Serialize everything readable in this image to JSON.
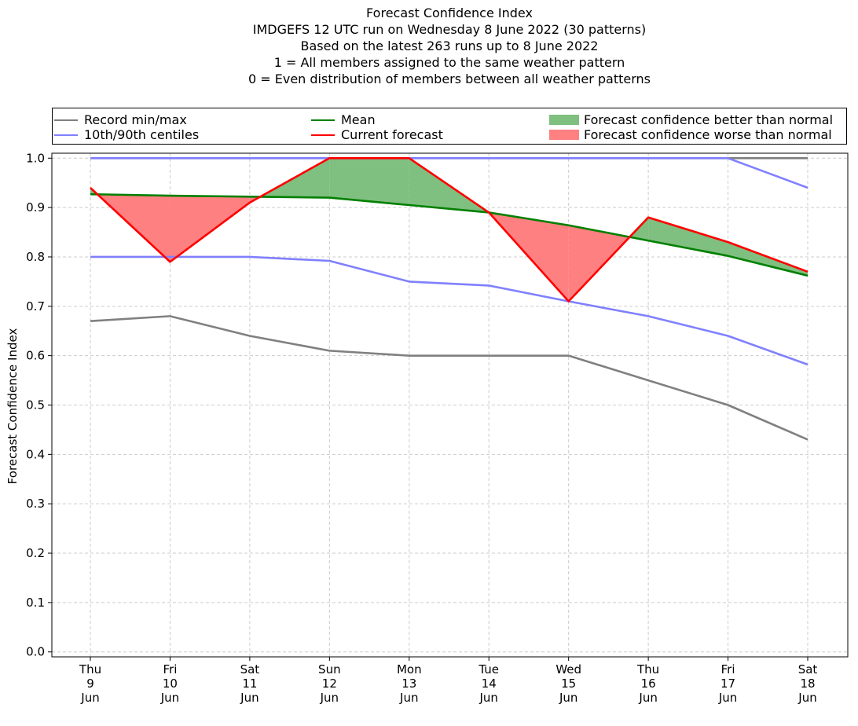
{
  "colors": {
    "record": "#808080",
    "centiles": "#8080ff",
    "mean": "#008000",
    "current": "#ff0000",
    "better_fill": "#7fbf7f",
    "worse_fill": "#ff8080",
    "grid": "#cccccc"
  },
  "chart_data": {
    "type": "line",
    "title_lines": [
      "Forecast Confidence Index",
      "IMDGEFS 12 UTC run on Wednesday 8 June 2022 (30 patterns)",
      "Based on the latest 263 runs up to 8 June 2022",
      "1 = All members assigned to the same weather pattern",
      "0 = Even distribution of members between all weather patterns"
    ],
    "xlabel": "",
    "ylabel": "Forecast Confidence Index",
    "ylim": [
      -0.01,
      1.01
    ],
    "yticks": [
      "0.0",
      "0.1",
      "0.2",
      "0.3",
      "0.4",
      "0.5",
      "0.6",
      "0.7",
      "0.8",
      "0.9",
      "1.0"
    ],
    "grid": true,
    "legend_position": "top (above plot)",
    "categories": [
      {
        "day": "Thu",
        "date": "9",
        "month": "Jun"
      },
      {
        "day": "Fri",
        "date": "10",
        "month": "Jun"
      },
      {
        "day": "Sat",
        "date": "11",
        "month": "Jun"
      },
      {
        "day": "Sun",
        "date": "12",
        "month": "Jun"
      },
      {
        "day": "Mon",
        "date": "13",
        "month": "Jun"
      },
      {
        "day": "Tue",
        "date": "14",
        "month": "Jun"
      },
      {
        "day": "Wed",
        "date": "15",
        "month": "Jun"
      },
      {
        "day": "Thu",
        "date": "16",
        "month": "Jun"
      },
      {
        "day": "Fri",
        "date": "17",
        "month": "Jun"
      },
      {
        "day": "Sat",
        "date": "18",
        "month": "Jun"
      }
    ],
    "legend": {
      "record": "Record min/max",
      "centiles": "10th/90th centiles",
      "mean": "Mean",
      "current": "Current forecast",
      "better": "Forecast confidence better than normal",
      "worse": "Forecast confidence worse than normal"
    },
    "series": {
      "record_max": [
        1.0,
        1.0,
        1.0,
        1.0,
        1.0,
        1.0,
        1.0,
        1.0,
        1.0,
        1.0
      ],
      "record_min": [
        0.67,
        0.68,
        0.64,
        0.61,
        0.6,
        0.6,
        0.6,
        0.55,
        0.5,
        0.43
      ],
      "centile_90": [
        1.0,
        1.0,
        1.0,
        1.0,
        1.0,
        1.0,
        1.0,
        1.0,
        1.0,
        0.94
      ],
      "centile_10": [
        0.8,
        0.8,
        0.8,
        0.792,
        0.75,
        0.742,
        0.71,
        0.68,
        0.64,
        0.582
      ],
      "mean": [
        0.927,
        0.924,
        0.922,
        0.92,
        0.905,
        0.89,
        0.864,
        0.833,
        0.802,
        0.762
      ],
      "current": [
        0.94,
        0.79,
        0.91,
        1.0,
        1.0,
        0.89,
        0.71,
        0.88,
        0.83,
        0.77
      ]
    }
  }
}
